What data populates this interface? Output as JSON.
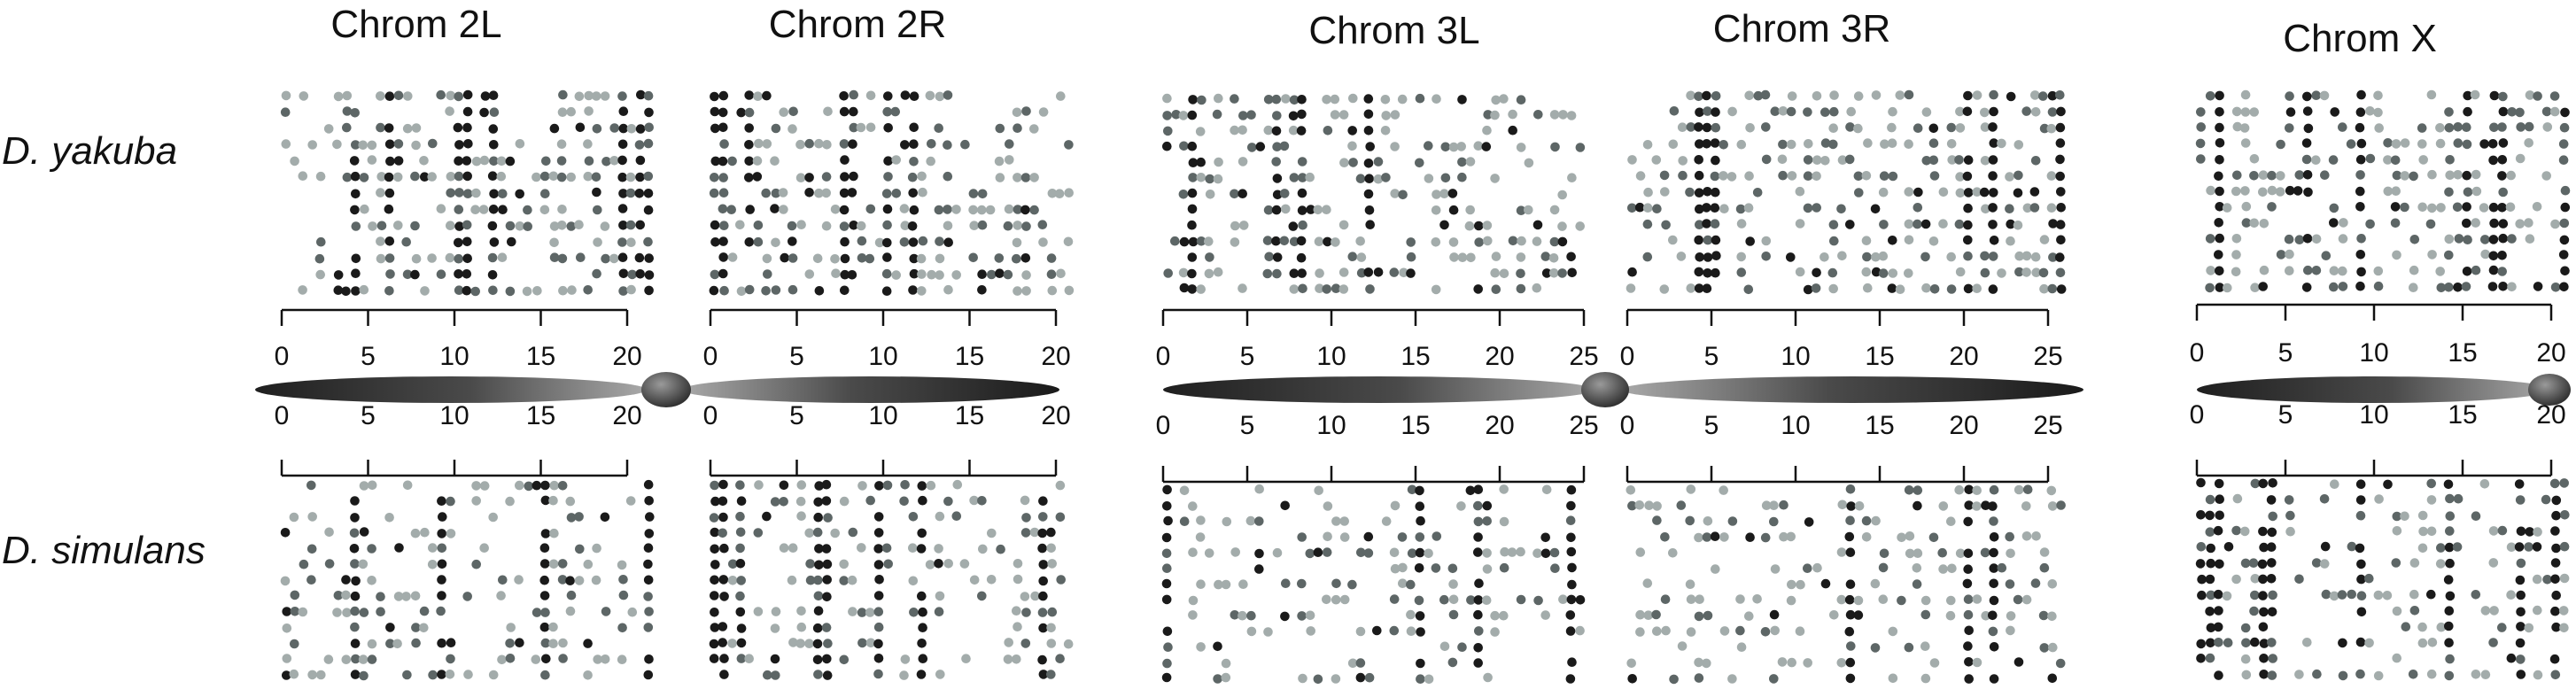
{
  "chart_data": {
    "type": "scatter",
    "title": "",
    "xlabel": "",
    "ylabel": "",
    "grid": false,
    "legend": "none",
    "species": [
      "D. yakuba",
      "D. simulans"
    ],
    "colors": {
      "dark": "#1a1a1a",
      "mid": "#5d6666",
      "light": "#a3acab",
      "centromere": "#555555"
    },
    "chromosomes": [
      {
        "name": "Chrom 2L",
        "arm": "left",
        "xlim": [
          0,
          21.5
        ],
        "ticks": [
          0,
          5,
          10,
          15,
          20
        ],
        "tick_labels": [
          "0",
          "5",
          "10",
          "15",
          "20"
        ],
        "hotspots": {
          "yakuba": [
            4.2,
            6.3,
            10.5,
            12.2,
            19.8,
            20.8,
            21.3
          ],
          "simulans": [
            4.3,
            9.1,
            15.2,
            21.3
          ]
        }
      },
      {
        "name": "Chrom 2R",
        "arm": "right",
        "xlim": [
          0,
          21.0
        ],
        "ticks": [
          0,
          5,
          10,
          15,
          20
        ],
        "tick_labels": [
          "0",
          "5",
          "10",
          "15",
          "20"
        ],
        "hotspots": {
          "yakuba": [
            0.3,
            0.8,
            2.3,
            7.7,
            8.3,
            10.3,
            11.6
          ],
          "simulans": [
            0.3,
            0.9,
            1.8,
            6.5,
            9.6,
            12.2,
            19.1
          ]
        }
      },
      {
        "name": "Chrom 3L",
        "arm": "left",
        "xlim": [
          0,
          25.0
        ],
        "ticks": [
          0,
          5,
          10,
          15,
          20,
          25
        ],
        "tick_labels": [
          "0",
          "5",
          "10",
          "15",
          "20",
          "25"
        ],
        "hotspots": {
          "yakuba": [
            1.8,
            6.8,
            8.2,
            12.1
          ],
          "simulans": [
            0.4,
            15.2,
            18.6,
            24.4
          ]
        }
      },
      {
        "name": "Chrom 3R",
        "arm": "right",
        "xlim": [
          0,
          26.0
        ],
        "ticks": [
          0,
          5,
          10,
          15,
          20,
          25
        ],
        "tick_labels": [
          "0",
          "5",
          "10",
          "15",
          "20",
          "25"
        ],
        "hotspots": {
          "yakuba": [
            4.5,
            5.0,
            20.2,
            21.6,
            25.7
          ],
          "simulans": [
            13.2,
            20.3,
            21.6
          ]
        }
      },
      {
        "name": "Chrom X",
        "arm": "left",
        "xlim": [
          0,
          21.0
        ],
        "ticks": [
          0,
          5,
          10,
          15,
          20
        ],
        "tick_labels": [
          "0",
          "5",
          "10",
          "15",
          "20"
        ],
        "hotspots": {
          "yakuba": [
            1.3,
            6.2,
            9.3,
            15.1,
            17.0,
            20.6
          ],
          "simulans": [
            0.3,
            1.0,
            3.6,
            4.4,
            9.4,
            14.4,
            18.2,
            20.3
          ]
        }
      }
    ]
  }
}
